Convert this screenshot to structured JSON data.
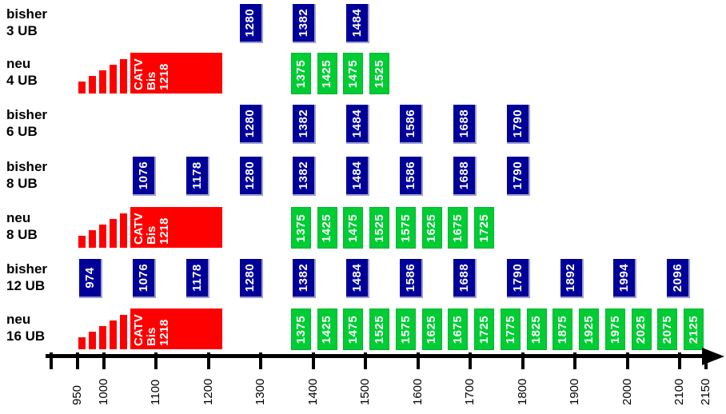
{
  "chart_data": {
    "type": "bar",
    "subtype": "horizontal-frequency-band-allocation",
    "title": "",
    "xlabel": "",
    "ylabel": "",
    "legend": "none",
    "grid": false,
    "x_axis": {
      "min": 900,
      "max": 2150,
      "ticks": [
        {
          "value": 900,
          "label": ""
        },
        {
          "value": 950,
          "label": "950"
        },
        {
          "value": 1000,
          "label": "1000"
        },
        {
          "value": 1100,
          "label": "1100"
        },
        {
          "value": 1200,
          "label": "1200"
        },
        {
          "value": 1300,
          "label": "1300"
        },
        {
          "value": 1400,
          "label": "1400"
        },
        {
          "value": 1500,
          "label": "1500"
        },
        {
          "value": 1600,
          "label": "1600"
        },
        {
          "value": 1700,
          "label": "1700"
        },
        {
          "value": 1800,
          "label": "1800"
        },
        {
          "value": 1900,
          "label": "1900"
        },
        {
          "value": 2000,
          "label": "2000"
        },
        {
          "value": 2100,
          "label": "2100"
        },
        {
          "value": 2150,
          "label": "2150"
        }
      ]
    },
    "rows": [
      {
        "id": "bisher-3ub",
        "kind": "bisher",
        "label_lines": [
          "bisher",
          "3 UB"
        ],
        "channels": [
          1280,
          1382,
          1484
        ]
      },
      {
        "id": "neu-4ub",
        "kind": "neu",
        "label_lines": [
          "neu",
          "4 UB"
        ],
        "catv": {
          "text_lines": [
            "CATV",
            "Bis",
            "1218"
          ],
          "band_start": 1050,
          "band_end": 1227,
          "stair_start": 950,
          "stair_steps": 5
        },
        "channels": [
          1375,
          1425,
          1475,
          1525
        ]
      },
      {
        "id": "bisher-6ub",
        "kind": "bisher",
        "label_lines": [
          "bisher",
          "6 UB"
        ],
        "channels": [
          1280,
          1382,
          1484,
          1586,
          1688,
          1790
        ]
      },
      {
        "id": "bisher-8ub",
        "kind": "bisher",
        "label_lines": [
          "bisher",
          "8 UB"
        ],
        "channels": [
          1076,
          1178,
          1280,
          1382,
          1484,
          1586,
          1688,
          1790
        ]
      },
      {
        "id": "neu-8ub",
        "kind": "neu",
        "label_lines": [
          "neu",
          "8 UB"
        ],
        "catv": {
          "text_lines": [
            "CATV",
            "Bis",
            "1218"
          ],
          "band_start": 1050,
          "band_end": 1227,
          "stair_start": 950,
          "stair_steps": 5
        },
        "channels": [
          1375,
          1425,
          1475,
          1525,
          1575,
          1625,
          1675,
          1725
        ]
      },
      {
        "id": "bisher-12ub",
        "kind": "bisher",
        "label_lines": [
          "bisher",
          "12 UB"
        ],
        "channels": [
          974,
          1076,
          1178,
          1280,
          1382,
          1484,
          1586,
          1688,
          1790,
          1892,
          1994,
          2096
        ]
      },
      {
        "id": "neu-16ub",
        "kind": "neu",
        "label_lines": [
          "neu",
          "16 UB"
        ],
        "catv": {
          "text_lines": [
            "CATV",
            "Bis",
            "1218"
          ],
          "band_start": 1050,
          "band_end": 1227,
          "stair_start": 950,
          "stair_steps": 5
        },
        "channels": [
          1375,
          1425,
          1475,
          1525,
          1575,
          1625,
          1675,
          1725,
          1775,
          1825,
          1875,
          1925,
          1975,
          2025,
          2075,
          2125
        ]
      }
    ],
    "colors": {
      "bisher_box": "#000099",
      "neu_box": "#00cc33",
      "catv_block": "#ff0000",
      "box_text": "#ffffff",
      "axis": "#000000",
      "label_text": "#000000",
      "background": "#ffffff"
    }
  }
}
